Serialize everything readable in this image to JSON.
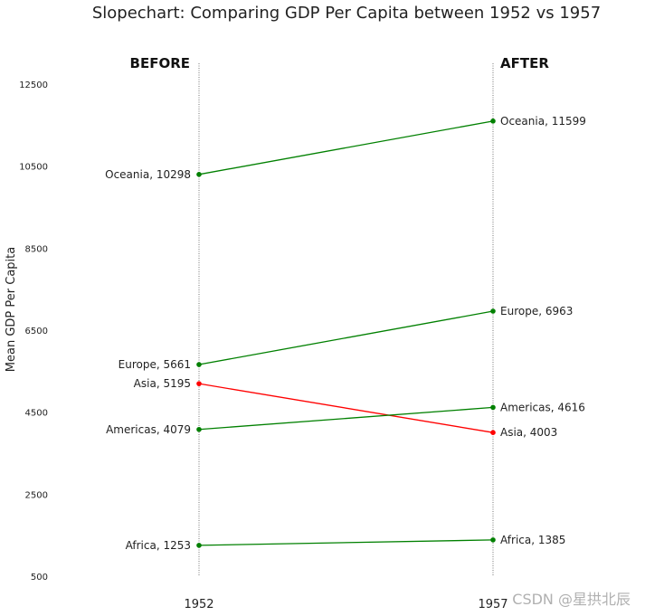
{
  "chart_data": {
    "type": "line",
    "title": "Slopechart: Comparing GDP Per Capita between 1952 vs 1957",
    "ylabel": "Mean GDP Per Capita",
    "xlabel": "",
    "categories": [
      "1952",
      "1957"
    ],
    "ylim": [
      500,
      13000
    ],
    "yticks": [
      500,
      2500,
      4500,
      6500,
      8500,
      10500,
      12500
    ],
    "headers": {
      "before": "BEFORE",
      "after": "AFTER"
    },
    "grid": false,
    "series": [
      {
        "name": "Oceania",
        "values": [
          10298,
          11599
        ],
        "color": "#008000"
      },
      {
        "name": "Europe",
        "values": [
          5661,
          6963
        ],
        "color": "#008000"
      },
      {
        "name": "Asia",
        "values": [
          5195,
          4003
        ],
        "color": "#ff0000"
      },
      {
        "name": "Americas",
        "values": [
          4079,
          4616
        ],
        "color": "#008000"
      },
      {
        "name": "Africa",
        "values": [
          1253,
          1385
        ],
        "color": "#008000"
      }
    ]
  },
  "watermark": "CSDN @星拱北辰"
}
